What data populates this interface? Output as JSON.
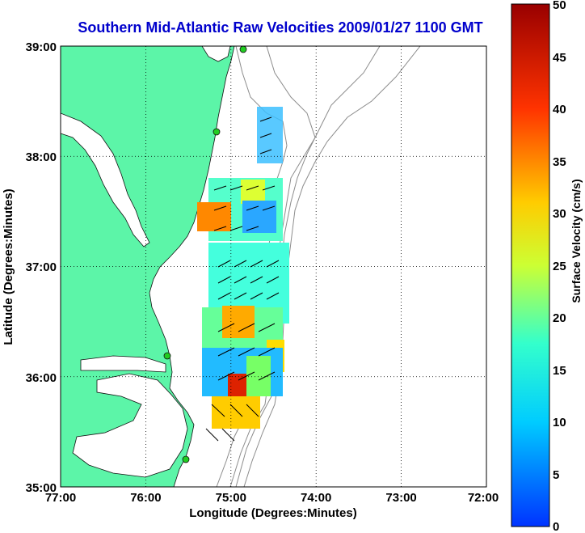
{
  "map": {
    "title": "Southern Mid-Atlantic Raw Velocities 2009/01/27 1100 GMT",
    "x_label": "Longitude (Degrees:Minutes)",
    "y_label": "Latitude (Degrees:Minutes)",
    "x_ticks": [
      "77:00",
      "76:00",
      "75:00",
      "74:00",
      "73:00",
      "72:00"
    ],
    "y_ticks": [
      "39:00",
      "38:00",
      "37:00",
      "36:00",
      "35:00"
    ],
    "land_color": "#5cf5a8",
    "water_color": "#ffffff",
    "bathymetry_color": "#8c8c8c",
    "station_color": "#22cc22",
    "vector_color": "#000000",
    "grid": true
  },
  "colorbar": {
    "label": "Surface Velocity (cm/s)",
    "ticks": [
      "50",
      "45",
      "40",
      "35",
      "30",
      "25",
      "20",
      "15",
      "10",
      "5",
      "0"
    ],
    "range": [
      0,
      50
    ],
    "gradient_stops": [
      "#0033ff",
      "#00ccff",
      "#33ffcc",
      "#ccff33",
      "#ffcc00",
      "#ff3300",
      "#990000"
    ]
  }
}
